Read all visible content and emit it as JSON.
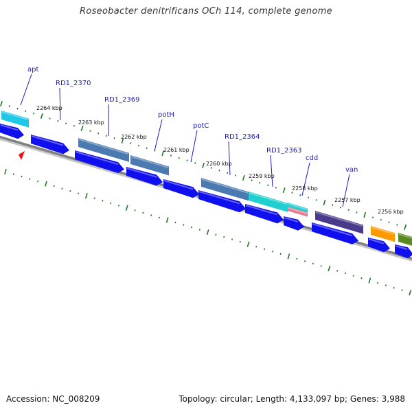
{
  "title": "Roseobacter denitrificans OCh 114, complete genome",
  "footer": {
    "accession": "Accession: NC_008209",
    "topology": "Topology: circular; Length: 4,133,097 bp; Genes: 3,988"
  },
  "colors": {
    "cds": "#1010ee",
    "backbone": "#808080",
    "ticks": "#1a7a1a",
    "label_text": "#1a1ac8",
    "label_line": "#1a1ac8",
    "marker": "#ee1010"
  },
  "scale_labels": [
    "2264 kbp",
    "2263 kbp",
    "2262 kbp",
    "2261 kbp",
    "2260 kbp",
    "2259 kbp",
    "2258 kbp",
    "2257 kbp",
    "2256 kbp"
  ],
  "gene_labels": [
    "apt",
    "RD1_2370",
    "RD1_2369",
    "potH",
    "potC",
    "RD1_2364",
    "RD1_2363",
    "cdd",
    "van"
  ],
  "feature_colors": {
    "cyan": "#20c8e8",
    "steel": "#4a7ab0",
    "teal": "#20d0d0",
    "cyan-pink": "#e87890",
    "purple": "#4a3a8a",
    "orange": "#ff9900",
    "olive": "#5a8a20"
  },
  "marker_icon": "red-triangle-marker"
}
